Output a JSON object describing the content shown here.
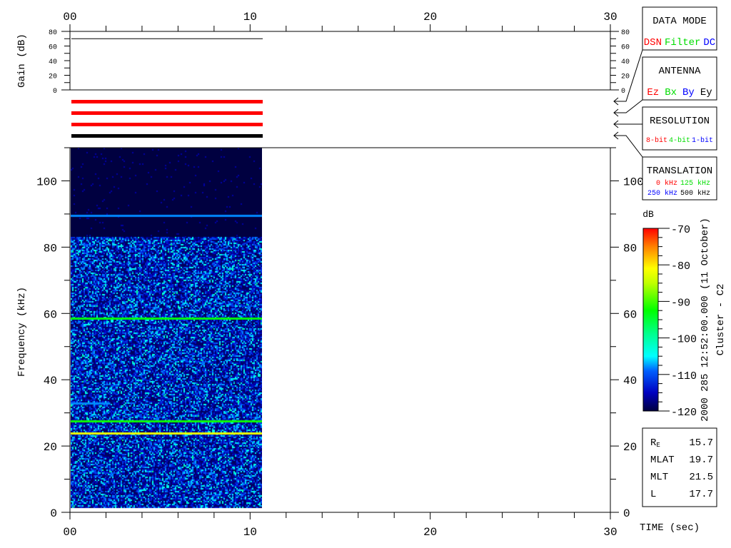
{
  "chart_data": {
    "type": "heatmap",
    "time_axis": {
      "label": "TIME (sec)",
      "range": [
        0,
        30
      ],
      "major_ticks": [
        0,
        10,
        20,
        30
      ],
      "tick_labels": [
        "00",
        "10",
        "20",
        "30"
      ],
      "minor_step": 2
    },
    "gain_panel": {
      "ylabel": "Gain (dB)",
      "ylim": [
        0,
        80
      ],
      "tick_labels": [
        "80",
        "60",
        "40",
        "20",
        "0"
      ],
      "tick_values": [
        80,
        60,
        40,
        20,
        0
      ],
      "series": {
        "x": [
          0,
          10.7
        ],
        "y": [
          70,
          70
        ]
      }
    },
    "mode_bars": [
      {
        "color": "#ff0000",
        "x": [
          0,
          10.7
        ]
      },
      {
        "color": "#ff0000",
        "x": [
          0,
          10.7
        ]
      },
      {
        "color": "#ff0000",
        "x": [
          0,
          10.7
        ]
      },
      {
        "color": "#000000",
        "x": [
          0,
          10.7
        ]
      }
    ],
    "spectrogram": {
      "ylabel": "Frequency (kHz)",
      "ylim": [
        0,
        110
      ],
      "tick_values": [
        0,
        20,
        40,
        60,
        80,
        100
      ],
      "tick_labels": [
        "0",
        "20",
        "40",
        "60",
        "80",
        "100"
      ],
      "data_time_range": [
        0,
        10.7
      ],
      "data_freq_range": [
        1.5,
        110
      ],
      "background_level_db": -115,
      "quiet_above_khz": 83,
      "lines": [
        {
          "freq_khz": 89.5,
          "level_db": -108,
          "t": [
            0,
            10.7
          ]
        },
        {
          "freq_khz": 58.5,
          "level_db": -93,
          "t": [
            0,
            10.7
          ]
        },
        {
          "freq_khz": 33,
          "level_db": -108,
          "t": [
            0,
            2.2
          ]
        },
        {
          "freq_khz": 27.5,
          "level_db": -92,
          "t": [
            0,
            10.7
          ]
        },
        {
          "freq_khz": 24,
          "level_db": -82,
          "t": [
            0,
            10.7
          ]
        }
      ]
    },
    "colorbar": {
      "label": "dB",
      "range": [
        -120,
        -70
      ],
      "tick_values": [
        -70,
        -80,
        -90,
        -100,
        -110,
        -120
      ],
      "tick_labels": [
        "-70",
        "-80",
        "-90",
        "-100",
        "-110",
        "-120"
      ],
      "minor_step": 2.5
    }
  },
  "side_text": {
    "datetime": "2000 285 12:52:00.000 (11 October)",
    "spacecraft": "Cluster - C2"
  },
  "legend": {
    "data_mode": {
      "title": "DATA MODE",
      "items": [
        {
          "text": "DSN",
          "color": "#ff0000"
        },
        {
          "text": "Filter",
          "color": "#00ff00"
        },
        {
          "text": "DC",
          "color": "#0000ff"
        }
      ]
    },
    "antenna": {
      "title": "ANTENNA",
      "items": [
        {
          "text": "Ez",
          "color": "#ff0000"
        },
        {
          "text": "Bx",
          "color": "#00ff00"
        },
        {
          "text": "By",
          "color": "#0000ff"
        },
        {
          "text": "Ey",
          "color": "#000000"
        }
      ]
    },
    "resolution": {
      "title": "RESOLUTION",
      "items": [
        {
          "text": "8-bit",
          "color": "#ff0000"
        },
        {
          "text": "4-bit",
          "color": "#00ff00"
        },
        {
          "text": "1-bit",
          "color": "#0000ff"
        }
      ]
    },
    "translation": {
      "title": "TRANSLATION",
      "items": [
        {
          "text": "0 kHz",
          "color": "#ff0000"
        },
        {
          "text": "125 kHz",
          "color": "#00ff00"
        },
        {
          "text": "250 kHz",
          "color": "#0000ff"
        },
        {
          "text": "500 kHz",
          "color": "#000000"
        }
      ]
    }
  },
  "orbit": {
    "rows": [
      {
        "label": "R",
        "sub": "E",
        "value": "15.7"
      },
      {
        "label": "MLAT",
        "sub": "",
        "value": "19.7"
      },
      {
        "label": "MLT",
        "sub": "",
        "value": "21.5"
      },
      {
        "label": "L",
        "sub": "",
        "value": "17.7"
      }
    ]
  }
}
